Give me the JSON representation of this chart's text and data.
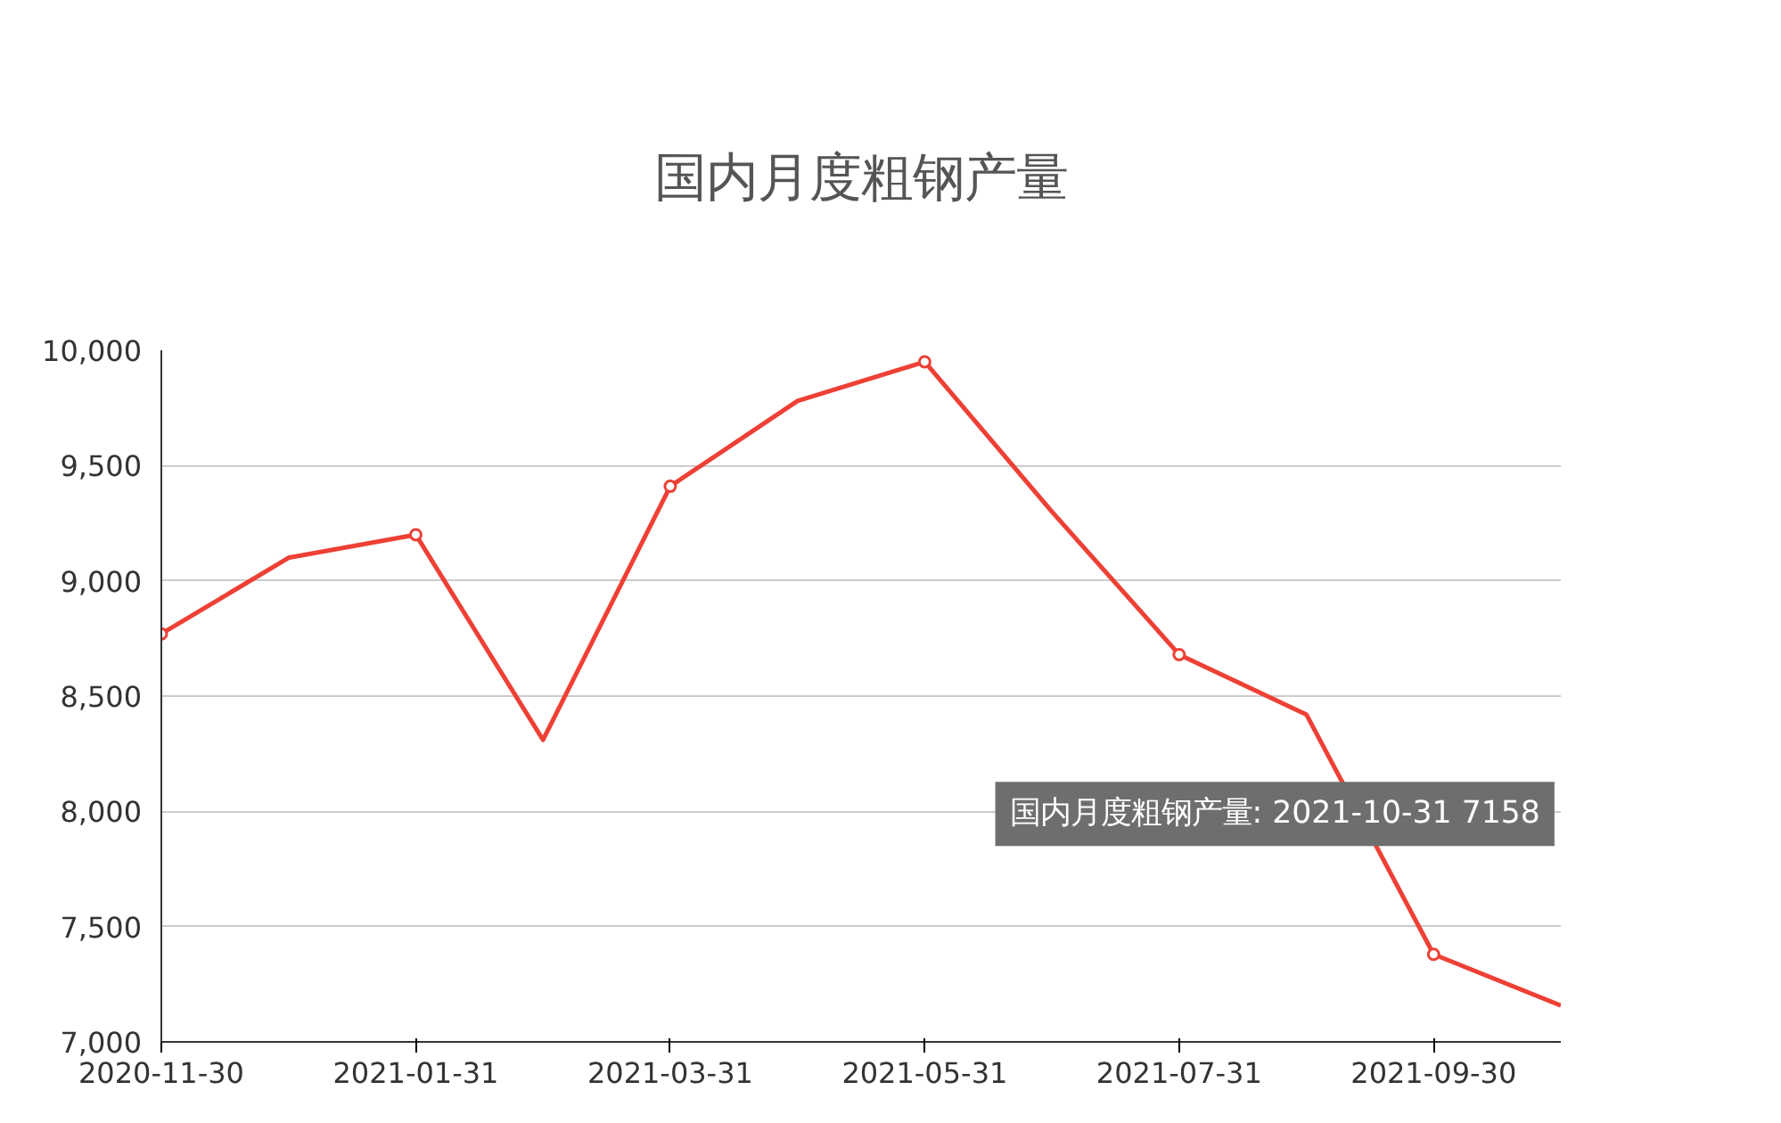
{
  "chart_data": {
    "type": "line",
    "title": "国内月度粗钢产量",
    "categories": [
      "2020-11-30",
      null,
      "2021-01-31",
      null,
      "2021-03-31",
      null,
      "2021-05-31",
      null,
      "2021-07-31",
      null,
      "2021-09-30",
      null
    ],
    "series": [
      {
        "color": "#ee4035",
        "values": [
          8770,
          9100,
          9200,
          8310,
          9410,
          9780,
          9950,
          9300,
          8680,
          8420,
          7380,
          7158
        ]
      }
    ],
    "ylim": [
      7000,
      10000
    ],
    "yticks": [
      {
        "value": 7000,
        "label": "7,000"
      },
      {
        "value": 7500,
        "label": "7,500"
      },
      {
        "value": 8000,
        "label": "8,000"
      },
      {
        "value": 8500,
        "label": "8,500"
      },
      {
        "value": 9000,
        "label": "9,000"
      },
      {
        "value": 9500,
        "label": "9,500"
      },
      {
        "value": 10000,
        "label": "10,000"
      }
    ],
    "grid": "y",
    "marker": "circle",
    "line_style": "solid",
    "annotations": [
      "国内月度粗钢产量: 2021-10-31 7158"
    ]
  }
}
